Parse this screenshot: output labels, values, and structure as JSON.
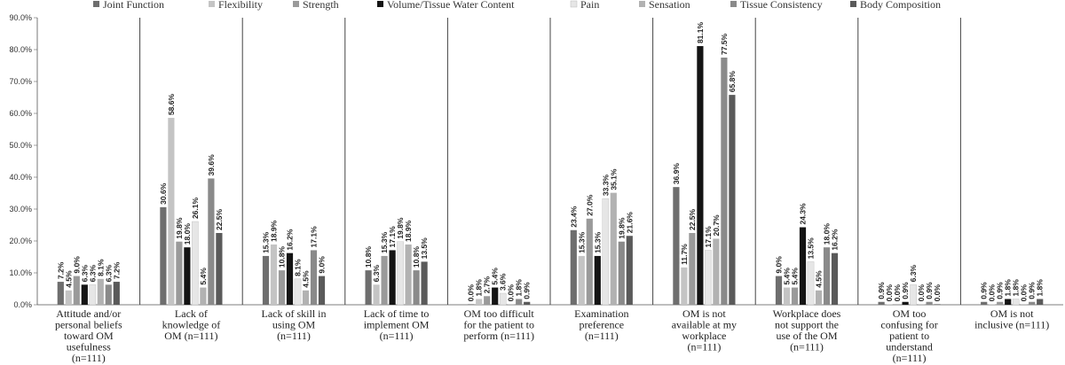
{
  "chart_data": {
    "type": "bar",
    "title": "",
    "xlabel": "",
    "ylabel": "",
    "ylim": [
      0,
      90
    ],
    "yticks": [
      "0.0%",
      "10.0%",
      "20.0%",
      "30.0%",
      "40.0%",
      "50.0%",
      "60.0%",
      "70.0%",
      "80.0%",
      "90.0%"
    ],
    "legend_position": "top",
    "categories": [
      [
        "Attitude and/or",
        "personal beliefs",
        "toward OM",
        "usefulness",
        "(n=111)"
      ],
      [
        "Lack of",
        "knowledge of",
        "OM (n=111)"
      ],
      [
        "Lack of skill in",
        "using OM",
        "(n=111)"
      ],
      [
        "Lack of time to",
        "implement OM",
        "(n=111)"
      ],
      [
        "OM too difficult",
        "for the patient to",
        "perform (n=111)"
      ],
      [
        "Examination",
        "preference",
        "(n=111)"
      ],
      [
        "OM is not",
        "available at my",
        "workplace",
        "(n=111)"
      ],
      [
        "Workplace does",
        "not support the",
        "use of the OM",
        "(n=111)"
      ],
      [
        "OM too",
        "confusing for",
        "patient to",
        "understand",
        "(n=111)"
      ],
      [
        "OM is not",
        "inclusive (n=111)"
      ]
    ],
    "series": [
      {
        "name": "Joint Function",
        "color": "#6e6e6e",
        "values": [
          7.2,
          30.6,
          15.3,
          10.8,
          0.0,
          23.4,
          36.9,
          9.0,
          0.9,
          0.9
        ],
        "labels": [
          "7.2%",
          "30.6%",
          "15.3%",
          "10.8%",
          "0.0%",
          "23.4%",
          "36.9%",
          "9.0%",
          "0.9%",
          "0.9%"
        ]
      },
      {
        "name": "Flexibility",
        "color": "#c4c4c4",
        "values": [
          4.5,
          58.6,
          18.9,
          6.3,
          1.8,
          15.3,
          11.7,
          5.4,
          0.0,
          0.0
        ],
        "labels": [
          "4.5%",
          "58.6%",
          "18.9%",
          "6.3%",
          "1.8%",
          "15.3%",
          "11.7%",
          "5.4%",
          "0.0%",
          "0.0%"
        ]
      },
      {
        "name": "Strength",
        "color": "#9a9a9a",
        "values": [
          9.0,
          19.8,
          10.8,
          15.3,
          2.7,
          27.0,
          22.5,
          5.4,
          0.0,
          0.9
        ],
        "labels": [
          "9.0%",
          "19.8%",
          "10.8%",
          "15.3%",
          "2.7%",
          "27.0%",
          "22.5%",
          "5.4%",
          "0.0%",
          "0.9%"
        ]
      },
      {
        "name": "Volume/Tissue Water Content",
        "color": "#141414",
        "values": [
          6.3,
          18.0,
          16.2,
          17.1,
          5.4,
          15.3,
          81.1,
          24.3,
          0.9,
          1.8
        ],
        "labels": [
          "6.3%",
          "18.0%",
          "16.2%",
          "17.1%",
          "5.4%",
          "15.3%",
          "81.1%",
          "24.3%",
          "0.9%",
          "1.8%"
        ]
      },
      {
        "name": "Pain",
        "color": "#e6e6e6",
        "values": [
          6.3,
          26.1,
          8.1,
          19.8,
          3.6,
          33.3,
          17.1,
          13.5,
          6.3,
          1.8
        ],
        "labels": [
          "6.3%",
          "26.1%",
          "8.1%",
          "19.8%",
          "3.6%",
          "33.3%",
          "17.1%",
          "13.5%",
          "6.3%",
          "1.8%"
        ]
      },
      {
        "name": "Sensation",
        "color": "#b2b2b2",
        "values": [
          8.1,
          5.4,
          4.5,
          18.9,
          0.0,
          35.1,
          20.7,
          4.5,
          0.0,
          0.0
        ],
        "labels": [
          "8.1%",
          "5.4%",
          "4.5%",
          "18.9%",
          "0.0%",
          "35.1%",
          "20.7%",
          "4.5%",
          "0.0%",
          "0.0%"
        ]
      },
      {
        "name": "Tissue Consistency",
        "color": "#8a8a8a",
        "values": [
          6.3,
          39.6,
          17.1,
          10.8,
          1.8,
          19.8,
          77.5,
          18.0,
          0.9,
          0.9
        ],
        "labels": [
          "6.3%",
          "39.6%",
          "17.1%",
          "10.8%",
          "1.8%",
          "19.8%",
          "77.5%",
          "18.0%",
          "0.9%",
          "0.9%"
        ]
      },
      {
        "name": "Body Composition",
        "color": "#5a5a5a",
        "values": [
          7.2,
          22.5,
          9.0,
          13.5,
          0.9,
          21.6,
          65.8,
          16.2,
          0.0,
          1.8
        ],
        "labels": [
          "7.2%",
          "22.5%",
          "9.0%",
          "13.5%",
          "0.9%",
          "21.6%",
          "65.8%",
          "16.2%",
          "0.0%",
          "1.8%"
        ]
      }
    ]
  }
}
